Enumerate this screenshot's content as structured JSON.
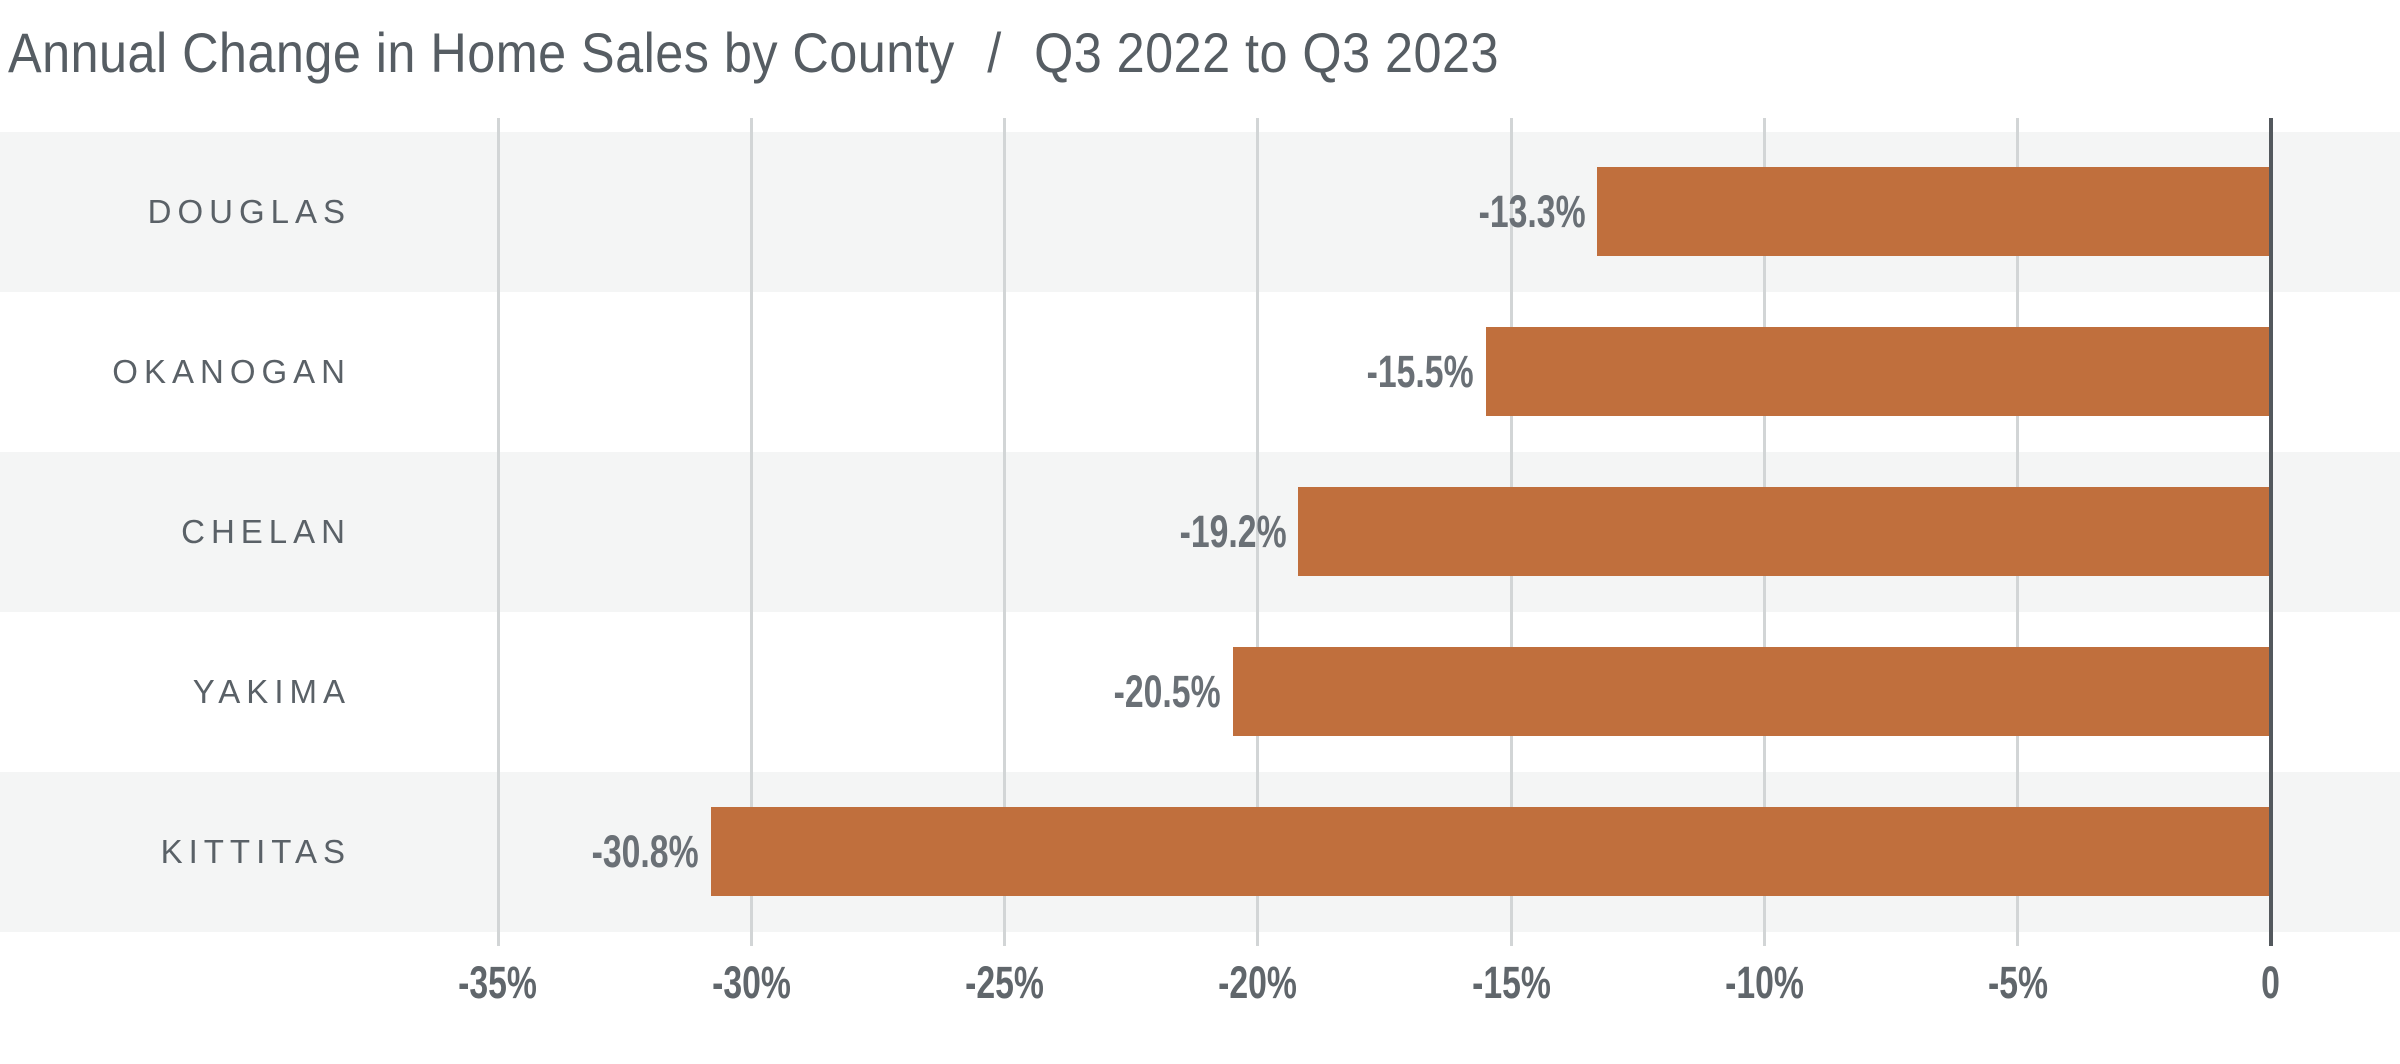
{
  "title": {
    "main": "Annual Change in Home Sales by County",
    "separator": "/",
    "subtitle": "Q3 2022 to Q3 2023"
  },
  "chart_data": {
    "type": "bar",
    "orientation": "horizontal",
    "title": "Annual Change in Home Sales by County / Q3 2022 to Q3 2023",
    "categories": [
      "DOUGLAS",
      "OKANOGAN",
      "CHELAN",
      "YAKIMA",
      "KITTITAS"
    ],
    "values": [
      -13.3,
      -15.5,
      -19.2,
      -20.5,
      -30.8
    ],
    "value_labels": [
      "-13.3%",
      "-15.5%",
      "-19.2%",
      "-20.5%",
      "-30.8%"
    ],
    "x_ticks": [
      -35,
      -30,
      -25,
      -20,
      -15,
      -10,
      -5,
      0
    ],
    "x_tick_labels": [
      "-35%",
      "-30%",
      "-25%",
      "-20%",
      "-15%",
      "-10%",
      "-5%",
      "0"
    ],
    "xlim": [
      -35,
      0
    ],
    "unit": "percent",
    "grid": true,
    "legend": false,
    "colors": {
      "bar": "#c06f3d",
      "row_stripe": "#f4f5f5",
      "row_plain": "#ffffff",
      "gridline": "#d2d5d6",
      "zero_axis": "#53585d",
      "title_text": "#565d63",
      "category_text": "#5a6167",
      "value_text": "#6a7076",
      "tick_text": "#60666b"
    }
  }
}
